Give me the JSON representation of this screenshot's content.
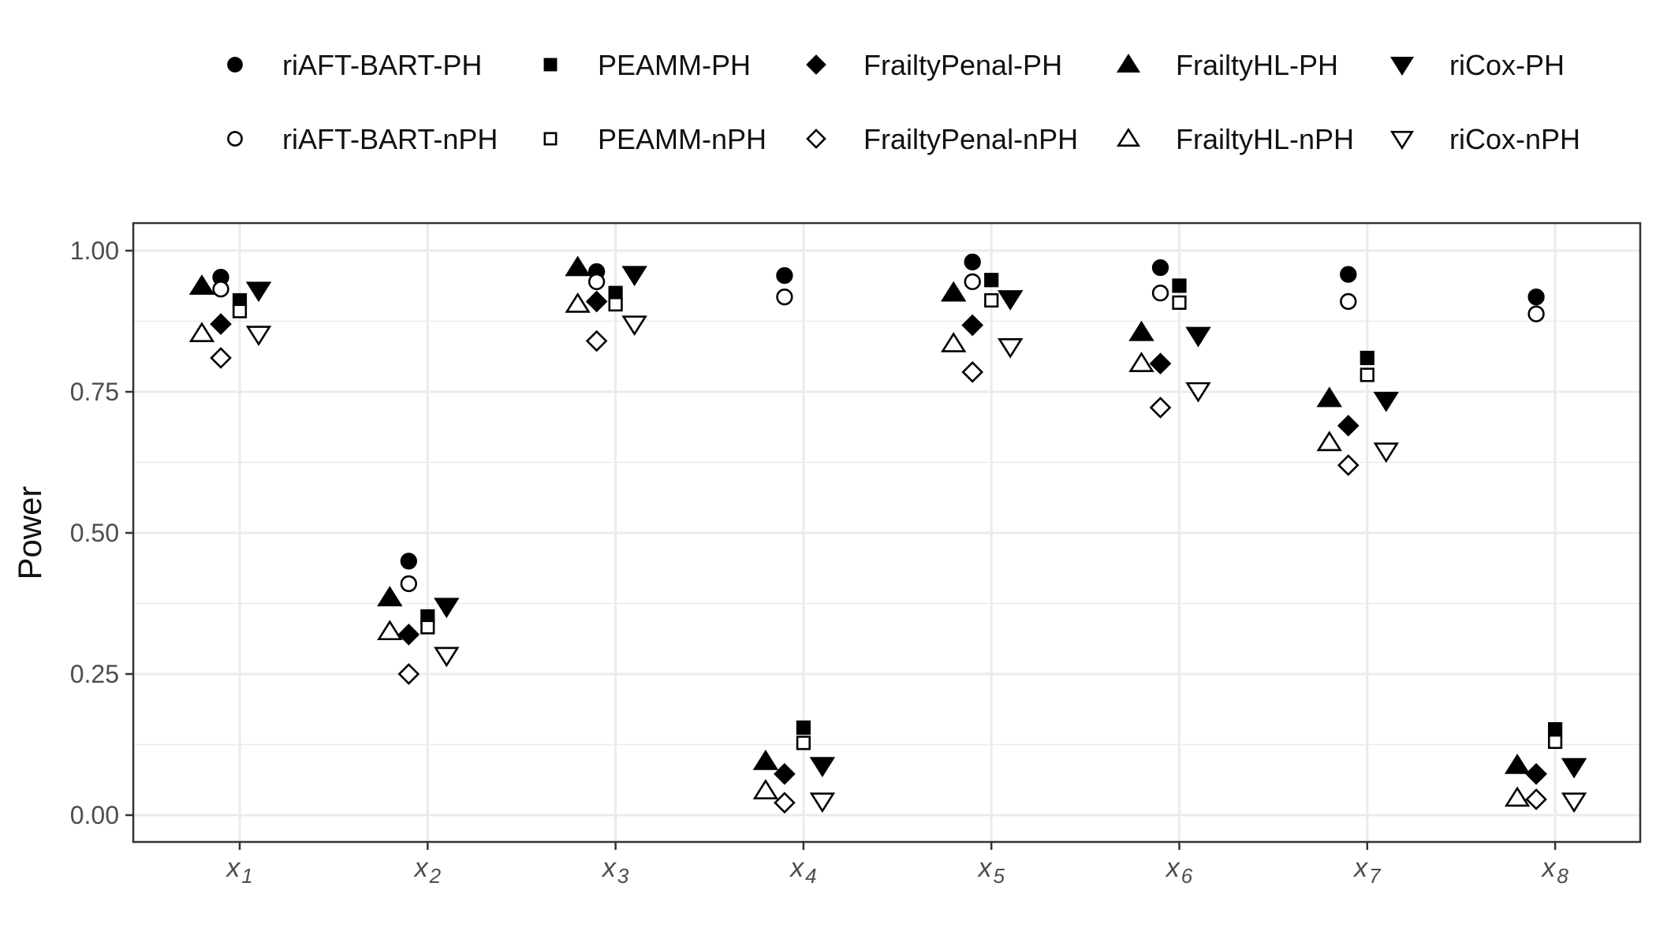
{
  "chart_data": {
    "type": "scatter",
    "title": "",
    "xlabel": "",
    "ylabel": "Power",
    "ylim": [
      0,
      1.05
    ],
    "y_ticks": [
      "0.00",
      "0.25",
      "0.50",
      "0.75",
      "1.00"
    ],
    "y_tick_values": [
      0,
      0.25,
      0.5,
      0.75,
      1.0
    ],
    "categories": [
      {
        "var": "x",
        "sub": "1"
      },
      {
        "var": "x",
        "sub": "2"
      },
      {
        "var": "x",
        "sub": "3"
      },
      {
        "var": "x",
        "sub": "4"
      },
      {
        "var": "x",
        "sub": "5"
      },
      {
        "var": "x",
        "sub": "6"
      },
      {
        "var": "x",
        "sub": "7"
      },
      {
        "var": "x",
        "sub": "8"
      }
    ],
    "legend_position": "top",
    "grid": true,
    "series": [
      {
        "name": "riAFT-BART-PH",
        "shape": "circle",
        "filled": true,
        "offset_index": 0,
        "values": [
          0.953,
          0.45,
          0.963,
          0.956,
          0.98,
          0.97,
          0.958,
          0.918
        ]
      },
      {
        "name": "PEAMM-PH",
        "shape": "square",
        "filled": true,
        "offset_index": 1,
        "values": [
          0.912,
          0.352,
          0.925,
          0.155,
          0.948,
          0.938,
          0.81,
          0.152
        ]
      },
      {
        "name": "FrailtyPenal-PH",
        "shape": "diamond",
        "filled": true,
        "offset_index": 2,
        "values": [
          0.87,
          0.32,
          0.91,
          0.073,
          0.868,
          0.8,
          0.69,
          0.073
        ]
      },
      {
        "name": "FrailtyHL-PH",
        "shape": "triangle-up",
        "filled": true,
        "offset_index": 3,
        "values": [
          0.937,
          0.385,
          0.97,
          0.095,
          0.925,
          0.855,
          0.738,
          0.088
        ]
      },
      {
        "name": "riCox-PH",
        "shape": "triangle-down",
        "filled": true,
        "offset_index": 4,
        "values": [
          0.93,
          0.37,
          0.958,
          0.088,
          0.915,
          0.85,
          0.735,
          0.086
        ]
      },
      {
        "name": "riAFT-BART-nPH",
        "shape": "circle",
        "filled": false,
        "offset_index": 0,
        "values": [
          0.932,
          0.41,
          0.945,
          0.918,
          0.945,
          0.925,
          0.91,
          0.888
        ]
      },
      {
        "name": "PEAMM-nPH",
        "shape": "square",
        "filled": false,
        "offset_index": 1,
        "values": [
          0.893,
          0.333,
          0.905,
          0.128,
          0.912,
          0.908,
          0.78,
          0.13
        ]
      },
      {
        "name": "FrailtyPenal-nPH",
        "shape": "diamond",
        "filled": false,
        "offset_index": 2,
        "values": [
          0.81,
          0.25,
          0.84,
          0.022,
          0.785,
          0.722,
          0.62,
          0.028
        ]
      },
      {
        "name": "FrailtyHL-nPH",
        "shape": "triangle-up",
        "filled": false,
        "offset_index": 3,
        "values": [
          0.853,
          0.325,
          0.905,
          0.043,
          0.835,
          0.8,
          0.66,
          0.03
        ]
      },
      {
        "name": "riCox-nPH",
        "shape": "triangle-down",
        "filled": false,
        "offset_index": 4,
        "values": [
          0.852,
          0.283,
          0.87,
          0.025,
          0.83,
          0.752,
          0.645,
          0.025
        ]
      }
    ],
    "colors": {
      "marker": "#000000",
      "grid": "#ebebeb",
      "panel_border": "#333333",
      "tick_text": "#4d4d4d"
    }
  }
}
